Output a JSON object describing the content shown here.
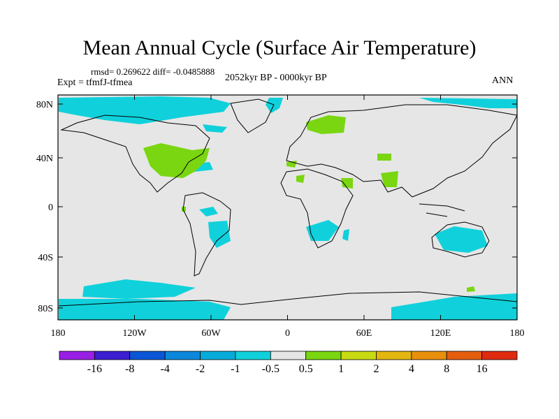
{
  "title": "Mean Annual Cycle (Surface Air Temperature)",
  "stats": "rmsd= 0.269622 diff= -0.0485888",
  "experiment": "Expt = tfmfJ-tfmea",
  "period": "2052kyr BP - 0000kyr BP",
  "season": "ANN",
  "y_ticks": [
    "80N",
    "40N",
    "0",
    "40S",
    "80S"
  ],
  "x_ticks": [
    "180",
    "120W",
    "60W",
    "0",
    "60E",
    "120E",
    "180"
  ],
  "colorbar": {
    "labels": [
      "-16",
      "-8",
      "-4",
      "-2",
      "-1",
      "-0.5",
      "0.5",
      "1",
      "2",
      "4",
      "8",
      "16"
    ],
    "colors": [
      "#9a1fe6",
      "#3b1fd1",
      "#0a56d6",
      "#0c87db",
      "#06acd9",
      "#10d1db",
      "#e6e6e6",
      "#7ad611",
      "#c8db12",
      "#e3b610",
      "#e8900c",
      "#e45e0e",
      "#e02b10"
    ]
  },
  "colors": {
    "ocean": "#e6e6e6",
    "cool": "#10d1db",
    "warm": "#7ad611"
  }
}
